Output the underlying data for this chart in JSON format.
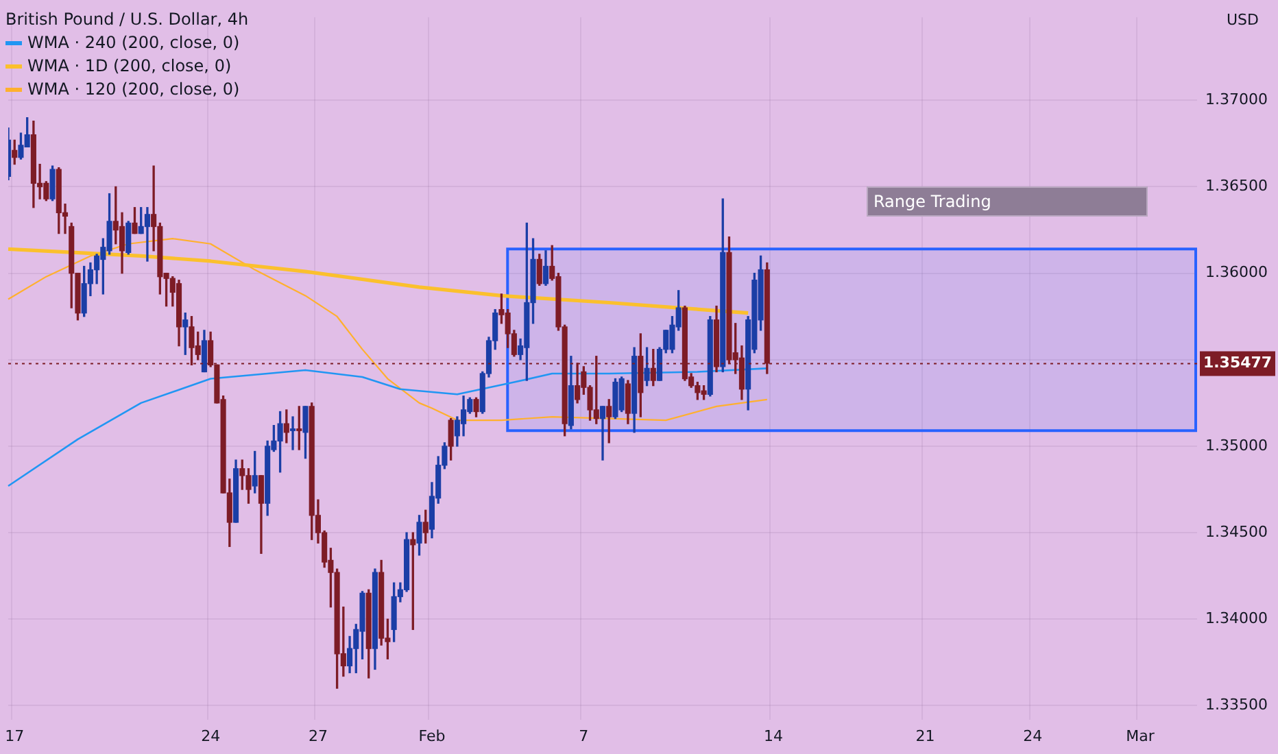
{
  "chart_data": {
    "type": "candlestick",
    "title": "British Pound / U.S. Dollar, 4h",
    "ylabel": "USD",
    "categories": [
      null,
      "17",
      null,
      null,
      null,
      null,
      null,
      null,
      null,
      null,
      null,
      null,
      null,
      null,
      null,
      null,
      null,
      null,
      null,
      null,
      null,
      null,
      null,
      null,
      null,
      null,
      null,
      null,
      null,
      null,
      null,
      null,
      "24",
      null,
      null,
      null,
      null,
      null,
      null,
      null,
      null,
      null,
      null,
      null,
      null,
      null,
      null,
      null,
      null,
      "27",
      null,
      null,
      null,
      null,
      null,
      null,
      null,
      null,
      null,
      null,
      null,
      null,
      null,
      null,
      null,
      null,
      null,
      "Feb",
      null,
      null,
      null,
      null,
      null,
      null,
      null,
      null,
      null,
      null,
      null,
      null,
      null,
      null,
      null,
      null,
      null,
      null,
      null,
      null,
      null,
      null,
      null,
      "7",
      null,
      null,
      null,
      null,
      null,
      null,
      null,
      null,
      null,
      null,
      null,
      null,
      null,
      null,
      null,
      null,
      null,
      null,
      null,
      null,
      null,
      null,
      null,
      null,
      null,
      null,
      null,
      null,
      null,
      "14",
      null,
      null,
      null,
      null,
      null,
      null,
      null,
      null,
      null,
      null,
      null,
      null,
      null,
      null,
      null,
      null,
      null,
      null,
      null,
      null,
      null,
      null,
      null,
      "21",
      null,
      null,
      null,
      null,
      null,
      null,
      null,
      null,
      null,
      null,
      null,
      null,
      null,
      null,
      null,
      null,
      "24",
      null,
      null,
      null,
      null,
      null,
      null,
      null,
      null,
      null,
      null,
      null,
      null,
      null,
      null,
      null,
      null,
      "Mar",
      null,
      null,
      null,
      null,
      null,
      null,
      null,
      null,
      null
    ],
    "ohlc": [
      [
        1.3656,
        1.3684,
        1.3654,
        1.3677
      ],
      [
        1.3671,
        1.3677,
        1.3663,
        1.3667
      ],
      [
        1.3667,
        1.3681,
        1.3666,
        1.3674
      ],
      [
        1.3673,
        1.369,
        1.3673,
        1.368
      ],
      [
        1.368,
        1.3688,
        1.3638,
        1.3652
      ],
      [
        1.3652,
        1.3663,
        1.3643,
        1.365
      ],
      [
        1.3652,
        1.3653,
        1.3642,
        1.3643
      ],
      [
        1.3643,
        1.3662,
        1.3642,
        1.366
      ],
      [
        1.366,
        1.3661,
        1.3623,
        1.3635
      ],
      [
        1.3635,
        1.364,
        1.3623,
        1.3633
      ],
      [
        1.3627,
        1.3629,
        1.358,
        1.36
      ],
      [
        1.36,
        1.36,
        1.3573,
        1.3577
      ],
      [
        1.3577,
        1.3604,
        1.3575,
        1.3594
      ],
      [
        1.3594,
        1.3606,
        1.3587,
        1.3602
      ],
      [
        1.3602,
        1.3611,
        1.3594,
        1.361
      ],
      [
        1.3608,
        1.362,
        1.3588,
        1.3615
      ],
      [
        1.3613,
        1.3646,
        1.3611,
        1.363
      ],
      [
        1.363,
        1.365,
        1.3617,
        1.3625
      ],
      [
        1.3627,
        1.3635,
        1.36,
        1.3613
      ],
      [
        1.3612,
        1.363,
        1.3611,
        1.3629
      ],
      [
        1.3629,
        1.3638,
        1.3623,
        1.3623
      ],
      [
        1.3623,
        1.3638,
        1.3623,
        1.3627
      ],
      [
        1.3627,
        1.3638,
        1.3607,
        1.3634
      ],
      [
        1.3634,
        1.3662,
        1.3613,
        1.3627
      ],
      [
        1.3627,
        1.3629,
        1.3588,
        1.3598
      ],
      [
        1.36,
        1.36,
        1.3581,
        1.3597
      ],
      [
        1.3597,
        1.3598,
        1.3581,
        1.3589
      ],
      [
        1.3594,
        1.3596,
        1.3558,
        1.3569
      ],
      [
        1.3569,
        1.3577,
        1.3553,
        1.3573
      ],
      [
        1.3569,
        1.3575,
        1.3547,
        1.3557
      ],
      [
        1.3558,
        1.3566,
        1.355,
        1.3553
      ],
      [
        1.3543,
        1.3567,
        1.3543,
        1.3561
      ],
      [
        1.3561,
        1.3566,
        1.3546,
        1.3547
      ],
      [
        1.3547,
        1.3547,
        1.3525,
        1.3525
      ],
      [
        1.3527,
        1.3529,
        1.3473,
        1.3473
      ],
      [
        1.3473,
        1.3481,
        1.3442,
        1.3456
      ],
      [
        1.3456,
        1.3492,
        1.3456,
        1.3487
      ],
      [
        1.3487,
        1.3492,
        1.3475,
        1.3483
      ],
      [
        1.3483,
        1.3487,
        1.3467,
        1.3475
      ],
      [
        1.3477,
        1.3497,
        1.3473,
        1.3483
      ],
      [
        1.3483,
        1.3483,
        1.3438,
        1.3467
      ],
      [
        1.3467,
        1.3503,
        1.346,
        1.35
      ],
      [
        1.3498,
        1.3512,
        1.3497,
        1.3503
      ],
      [
        1.3503,
        1.352,
        1.3485,
        1.3513
      ],
      [
        1.3513,
        1.3521,
        1.3502,
        1.3508
      ],
      [
        1.3509,
        1.3517,
        1.3498,
        1.351
      ],
      [
        1.351,
        1.3523,
        1.3498,
        1.3509
      ],
      [
        1.3508,
        1.3523,
        1.3493,
        1.3523
      ],
      [
        1.3523,
        1.3525,
        1.3446,
        1.346
      ],
      [
        1.346,
        1.3469,
        1.3444,
        1.345
      ],
      [
        1.345,
        1.3451,
        1.343,
        1.3433
      ],
      [
        1.3434,
        1.3441,
        1.3407,
        1.3427
      ],
      [
        1.3427,
        1.3429,
        1.336,
        1.338
      ],
      [
        1.338,
        1.3407,
        1.3367,
        1.3373
      ],
      [
        1.3373,
        1.339,
        1.3369,
        1.3383
      ],
      [
        1.3383,
        1.3397,
        1.3369,
        1.3394
      ],
      [
        1.3393,
        1.3416,
        1.3377,
        1.3415
      ],
      [
        1.3415,
        1.3417,
        1.3366,
        1.3383
      ],
      [
        1.3383,
        1.3429,
        1.3371,
        1.3427
      ],
      [
        1.3427,
        1.3434,
        1.3385,
        1.3389
      ],
      [
        1.3389,
        1.34,
        1.3377,
        1.3387
      ],
      [
        1.3394,
        1.3421,
        1.3387,
        1.3413
      ],
      [
        1.3413,
        1.3421,
        1.341,
        1.3417
      ],
      [
        1.3417,
        1.345,
        1.3416,
        1.3446
      ],
      [
        1.3446,
        1.345,
        1.3394,
        1.3443
      ],
      [
        1.3444,
        1.346,
        1.3437,
        1.3456
      ],
      [
        1.3456,
        1.3463,
        1.3444,
        1.345
      ],
      [
        1.3452,
        1.3479,
        1.3447,
        1.3471
      ],
      [
        1.347,
        1.3494,
        1.3467,
        1.3489
      ],
      [
        1.3489,
        1.3502,
        1.3487,
        1.35
      ],
      [
        1.3515,
        1.3516,
        1.3492,
        1.35
      ],
      [
        1.3506,
        1.3517,
        1.35,
        1.3515
      ],
      [
        1.3513,
        1.3529,
        1.3506,
        1.3521
      ],
      [
        1.352,
        1.3528,
        1.3519,
        1.3527
      ],
      [
        1.3527,
        1.3528,
        1.3517,
        1.352
      ],
      [
        1.352,
        1.3543,
        1.3519,
        1.3542
      ],
      [
        1.3542,
        1.3563,
        1.354,
        1.3561
      ],
      [
        1.3561,
        1.3579,
        1.3556,
        1.3577
      ],
      [
        1.3579,
        1.3588,
        1.3571,
        1.3576
      ],
      [
        1.3577,
        1.3579,
        1.3557,
        1.3565
      ],
      [
        1.3565,
        1.3567,
        1.3552,
        1.3553
      ],
      [
        1.3553,
        1.3562,
        1.355,
        1.3558
      ],
      [
        1.3557,
        1.3629,
        1.3538,
        1.3583
      ],
      [
        1.3583,
        1.362,
        1.3571,
        1.3608
      ],
      [
        1.3608,
        1.3611,
        1.3593,
        1.3594
      ],
      [
        1.3594,
        1.3613,
        1.3593,
        1.3604
      ],
      [
        1.3604,
        1.3616,
        1.3596,
        1.3597
      ],
      [
        1.3598,
        1.36,
        1.3567,
        1.3569
      ],
      [
        1.3569,
        1.357,
        1.3506,
        1.3513
      ],
      [
        1.3512,
        1.3552,
        1.351,
        1.3535
      ],
      [
        1.3535,
        1.3548,
        1.3525,
        1.3527
      ],
      [
        1.3543,
        1.3546,
        1.353,
        1.3534
      ],
      [
        1.3534,
        1.3535,
        1.3515,
        1.3521
      ],
      [
        1.3521,
        1.3552,
        1.3513,
        1.3516
      ],
      [
        1.3516,
        1.3523,
        1.3492,
        1.3523
      ],
      [
        1.3523,
        1.3527,
        1.3502,
        1.3517
      ],
      [
        1.3517,
        1.3539,
        1.3516,
        1.3537
      ],
      [
        1.3521,
        1.354,
        1.352,
        1.3539
      ],
      [
        1.3536,
        1.3538,
        1.3513,
        1.3519
      ],
      [
        1.3519,
        1.3557,
        1.3508,
        1.3552
      ],
      [
        1.3552,
        1.3565,
        1.3517,
        1.3531
      ],
      [
        1.3538,
        1.3557,
        1.3535,
        1.3545
      ],
      [
        1.3545,
        1.3556,
        1.3535,
        1.3538
      ],
      [
        1.3538,
        1.3557,
        1.3538,
        1.3556
      ],
      [
        1.3556,
        1.3567,
        1.3554,
        1.3567
      ],
      [
        1.3556,
        1.3575,
        1.3554,
        1.357
      ],
      [
        1.3569,
        1.359,
        1.3567,
        1.358
      ],
      [
        1.358,
        1.3581,
        1.3538,
        1.3539
      ],
      [
        1.354,
        1.3542,
        1.3534,
        1.3535
      ],
      [
        1.3535,
        1.3537,
        1.3527,
        1.3531
      ],
      [
        1.3532,
        1.3535,
        1.3527,
        1.353
      ],
      [
        1.353,
        1.3575,
        1.3529,
        1.3573
      ],
      [
        1.3573,
        1.3581,
        1.3543,
        1.3546
      ],
      [
        1.3546,
        1.3643,
        1.3543,
        1.3612
      ],
      [
        1.3612,
        1.3621,
        1.3548,
        1.355
      ],
      [
        1.3554,
        1.3571,
        1.3542,
        1.355
      ],
      [
        1.3551,
        1.3558,
        1.3527,
        1.3533
      ],
      [
        1.3533,
        1.3575,
        1.3521,
        1.3573
      ],
      [
        1.3556,
        1.36,
        1.3554,
        1.3596
      ],
      [
        1.3573,
        1.361,
        1.3567,
        1.3602
      ],
      [
        1.3602,
        1.3606,
        1.3542,
        1.3548
      ],
      null,
      null,
      null,
      null,
      null,
      null,
      null,
      null,
      null,
      null,
      null,
      null,
      null,
      null,
      null,
      null,
      null,
      null,
      null,
      null,
      null,
      null,
      null,
      null,
      null,
      null,
      null,
      null,
      null,
      null,
      null,
      null,
      null,
      null,
      null,
      null,
      null,
      null,
      null,
      null,
      null,
      null,
      null,
      null,
      null,
      null,
      null,
      null,
      null,
      null,
      null,
      null,
      null,
      null,
      null,
      null,
      null,
      null,
      null,
      null,
      null,
      null,
      null,
      null,
      null,
      null,
      null,
      null
    ],
    "colors": [
      "#1b3ea6",
      "#7d1c26",
      "#1b3ea6",
      "#1b3ea6",
      "#7d1c26",
      "#7d1c26",
      "#7d1c26",
      "#1b3ea6",
      "#7d1c26",
      "#7d1c26",
      "#7d1c26",
      "#7d1c26",
      "#1b3ea6",
      "#1b3ea6",
      "#1b3ea6",
      "#1b3ea6",
      "#1b3ea6",
      "#7d1c26",
      "#7d1c26",
      "#1b3ea6",
      "#7d1c26",
      "#1b3ea6",
      "#1b3ea6",
      "#7d1c26",
      "#7d1c26",
      "#7d1c26",
      "#7d1c26",
      "#7d1c26",
      "#1b3ea6",
      "#7d1c26",
      "#7d1c26",
      "#1b3ea6",
      "#7d1c26",
      "#7d1c26",
      "#7d1c26",
      "#7d1c26",
      "#1b3ea6",
      "#7d1c26",
      "#7d1c26",
      "#1b3ea6",
      "#7d1c26",
      "#1b3ea6",
      "#1b3ea6",
      "#1b3ea6",
      "#7d1c26",
      "#1b3ea6",
      "#7d1c26",
      "#1b3ea6",
      "#7d1c26",
      "#7d1c26",
      "#7d1c26",
      "#7d1c26",
      "#7d1c26",
      "#7d1c26",
      "#1b3ea6",
      "#1b3ea6",
      "#1b3ea6",
      "#7d1c26",
      "#1b3ea6",
      "#7d1c26",
      "#7d1c26",
      "#1b3ea6",
      "#1b3ea6",
      "#1b3ea6",
      "#7d1c26",
      "#1b3ea6",
      "#7d1c26",
      "#1b3ea6",
      "#1b3ea6",
      "#1b3ea6",
      "#7d1c26",
      "#1b3ea6",
      "#1b3ea6",
      "#1b3ea6",
      "#7d1c26",
      "#1b3ea6",
      "#1b3ea6",
      "#1b3ea6",
      "#7d1c26",
      "#7d1c26",
      "#7d1c26",
      "#1b3ea6",
      "#1b3ea6",
      "#1b3ea6",
      "#7d1c26",
      "#1b3ea6",
      "#7d1c26",
      "#7d1c26",
      "#7d1c26",
      "#1b3ea6",
      "#7d1c26",
      "#7d1c26",
      "#7d1c26",
      "#7d1c26",
      "#1b3ea6",
      "#7d1c26",
      "#1b3ea6",
      "#1b3ea6",
      "#7d1c26",
      "#1b3ea6",
      "#7d1c26",
      "#1b3ea6",
      "#7d1c26",
      "#1b3ea6",
      "#1b3ea6",
      "#1b3ea6",
      "#1b3ea6",
      "#7d1c26",
      "#7d1c26",
      "#7d1c26",
      "#7d1c26",
      "#1b3ea6",
      "#7d1c26",
      "#1b3ea6",
      "#7d1c26",
      "#7d1c26",
      "#7d1c26",
      "#1b3ea6",
      "#1b3ea6",
      "#1b3ea6",
      "#7d1c26",
      null,
      null,
      null,
      null,
      null,
      null,
      null,
      null,
      null,
      null,
      null,
      null,
      null,
      null,
      null,
      null,
      null,
      null,
      null,
      null,
      null,
      null,
      null,
      null,
      null,
      null,
      null,
      null,
      null,
      null,
      null,
      null,
      null,
      null,
      null,
      null,
      null,
      null,
      null,
      null,
      null,
      null,
      null,
      null,
      null,
      null,
      null,
      null,
      null,
      null,
      null,
      null,
      null,
      null,
      null,
      null,
      null,
      null,
      null,
      null,
      null,
      null,
      null,
      null,
      null,
      null,
      null,
      null
    ],
    "series": [
      {
        "type": "line",
        "name": "WMA · 240 (200, close, 0)",
        "color": "#2196f3",
        "values": [
          1.3477,
          null,
          null,
          null,
          null,
          null,
          null,
          null,
          null,
          null,
          null,
          1.3504,
          null,
          null,
          null,
          null,
          null,
          null,
          null,
          null,
          null,
          1.3525,
          null,
          null,
          null,
          null,
          null,
          null,
          null,
          null,
          null,
          null,
          1.3539,
          null,
          null,
          null,
          null,
          null,
          null,
          null,
          null,
          null,
          null,
          null,
          null,
          null,
          null,
          1.3544,
          null,
          null,
          null,
          null,
          null,
          null,
          null,
          null,
          1.354,
          null,
          null,
          null,
          null,
          null,
          1.3533,
          null,
          null,
          null,
          null,
          null,
          null,
          null,
          null,
          1.353,
          null,
          null,
          null,
          null,
          null,
          null,
          null,
          null,
          1.3537,
          null,
          null,
          null,
          null,
          null,
          1.3542,
          null,
          null,
          null,
          null,
          null,
          null,
          null,
          null,
          1.3542,
          null,
          null,
          null,
          null,
          null,
          null,
          null,
          null,
          null,
          null,
          null,
          null,
          null,
          1.3543,
          null,
          null,
          null,
          null,
          null,
          null,
          null,
          null,
          null,
          null,
          1.3545,
          null,
          null,
          null,
          null,
          null,
          null,
          null,
          null,
          null,
          null,
          null,
          null,
          null,
          null,
          null,
          null,
          null,
          null,
          null,
          null,
          null,
          null,
          null,
          null,
          null,
          null,
          null,
          null,
          null,
          null,
          null,
          null,
          null,
          null,
          null,
          null,
          null,
          null,
          null,
          null,
          null,
          null,
          null,
          null,
          null,
          null,
          null,
          null,
          null,
          null,
          null,
          null,
          null,
          null,
          null,
          null,
          null,
          null,
          null,
          null,
          null,
          null,
          null,
          null,
          null,
          null,
          null,
          null
        ]
      },
      {
        "type": "line",
        "name": "WMA · 1D (200, close, 0)",
        "color": "#fbc02d",
        "values": [
          1.3614,
          null,
          null,
          null,
          null,
          null,
          null,
          null,
          null,
          null,
          null,
          null,
          null,
          null,
          null,
          null,
          null,
          null,
          null,
          null,
          null,
          1.361,
          null,
          null,
          null,
          null,
          null,
          null,
          null,
          null,
          null,
          null,
          1.3607,
          null,
          null,
          null,
          null,
          null,
          null,
          null,
          null,
          null,
          null,
          null,
          null,
          null,
          null,
          1.3601,
          null,
          null,
          null,
          null,
          null,
          null,
          null,
          null,
          null,
          null,
          null,
          null,
          null,
          null,
          null,
          null,
          null,
          1.3592,
          null,
          null,
          null,
          null,
          null,
          null,
          null,
          null,
          null,
          null,
          null,
          null,
          1.3587,
          null,
          null,
          null,
          null,
          null,
          null,
          null,
          null,
          null,
          null,
          null,
          null,
          null,
          null,
          null,
          null,
          1.3583,
          null,
          null,
          null,
          null,
          null,
          null,
          null,
          null,
          null,
          null,
          1.358,
          null,
          null,
          null,
          null,
          null,
          null,
          null,
          null,
          null,
          null,
          1.3577,
          null,
          null,
          null,
          null,
          null,
          null,
          null,
          null,
          null,
          null,
          null,
          null,
          null,
          null,
          null,
          null,
          null,
          null,
          null,
          null,
          null,
          null,
          null,
          null,
          null,
          null,
          null,
          null,
          null,
          null,
          null,
          null,
          null,
          null,
          null,
          null,
          null,
          null,
          null,
          null,
          null,
          null,
          null,
          null,
          null,
          null,
          null,
          null,
          null,
          null,
          null,
          null,
          null,
          null,
          null,
          null,
          null,
          null,
          null,
          null,
          null,
          null,
          null,
          null,
          null,
          null,
          null,
          null,
          null,
          null,
          null
        ]
      },
      {
        "type": "line",
        "name": "WMA · 120 (200, close, 0)",
        "color": "#ffb02e",
        "values": [
          1.3585,
          null,
          null,
          null,
          null,
          null,
          1.3598,
          null,
          null,
          null,
          null,
          null,
          null,
          1.361,
          null,
          null,
          null,
          null,
          null,
          1.3617,
          null,
          null,
          null,
          null,
          null,
          null,
          1.362,
          null,
          null,
          null,
          null,
          null,
          1.3617,
          null,
          null,
          null,
          null,
          null,
          null,
          1.3602,
          null,
          null,
          null,
          null,
          null,
          null,
          null,
          1.3587,
          null,
          null,
          null,
          null,
          1.3575,
          null,
          null,
          null,
          1.3556,
          null,
          null,
          null,
          1.3539,
          null,
          null,
          null,
          null,
          1.3525,
          null,
          1.3522,
          null,
          null,
          null,
          1.3515,
          null,
          null,
          null,
          null,
          null,
          null,
          1.3515,
          null,
          null,
          null,
          null,
          null,
          null,
          null,
          1.3517,
          null,
          null,
          null,
          null,
          null,
          null,
          null,
          null,
          1.3516,
          null,
          null,
          null,
          null,
          null,
          null,
          null,
          null,
          1.3515,
          null,
          null,
          null,
          null,
          null,
          null,
          null,
          1.3523,
          null,
          null,
          null,
          null,
          null,
          null,
          null,
          1.3527,
          null,
          null,
          null,
          null,
          null,
          null,
          null,
          null,
          null,
          null,
          null,
          null,
          null,
          null,
          null,
          null,
          null,
          null,
          null,
          null,
          null,
          null,
          null,
          null,
          null,
          null,
          null,
          null,
          null,
          null,
          null,
          null,
          null,
          null,
          null,
          null,
          null,
          null,
          null,
          null,
          null,
          null,
          null,
          null,
          null,
          null,
          null,
          null,
          null,
          null,
          null,
          null,
          null,
          null,
          null,
          null,
          null,
          null,
          null,
          null,
          null,
          null,
          null,
          null,
          null,
          null,
          null,
          null
        ]
      }
    ],
    "ylim": [
      1.3342,
      1.3748
    ],
    "yticks": [
      {
        "value": 1.335,
        "label": "1.33500"
      },
      {
        "value": 1.34,
        "label": "1.34000"
      },
      {
        "value": 1.345,
        "label": "1.34500"
      },
      {
        "value": 1.35,
        "label": "1.35000"
      },
      {
        "value": 1.355,
        "label": null
      },
      {
        "value": 1.36,
        "label": "1.36000"
      },
      {
        "value": 1.365,
        "label": "1.36500"
      },
      {
        "value": 1.37,
        "label": "1.37000"
      }
    ],
    "ref_lines": [
      {
        "axis": "y",
        "value": 1.35477,
        "label": "1.35477",
        "color": "#7d1c26",
        "line_style": "dotted"
      }
    ],
    "bands": [
      {
        "axis": "y",
        "from": 1.3509,
        "to": 1.3614,
        "label": "Range Trading",
        "color": "#2962ff"
      }
    ],
    "grid": true,
    "legend": "top left",
    "marker": "none"
  }
}
